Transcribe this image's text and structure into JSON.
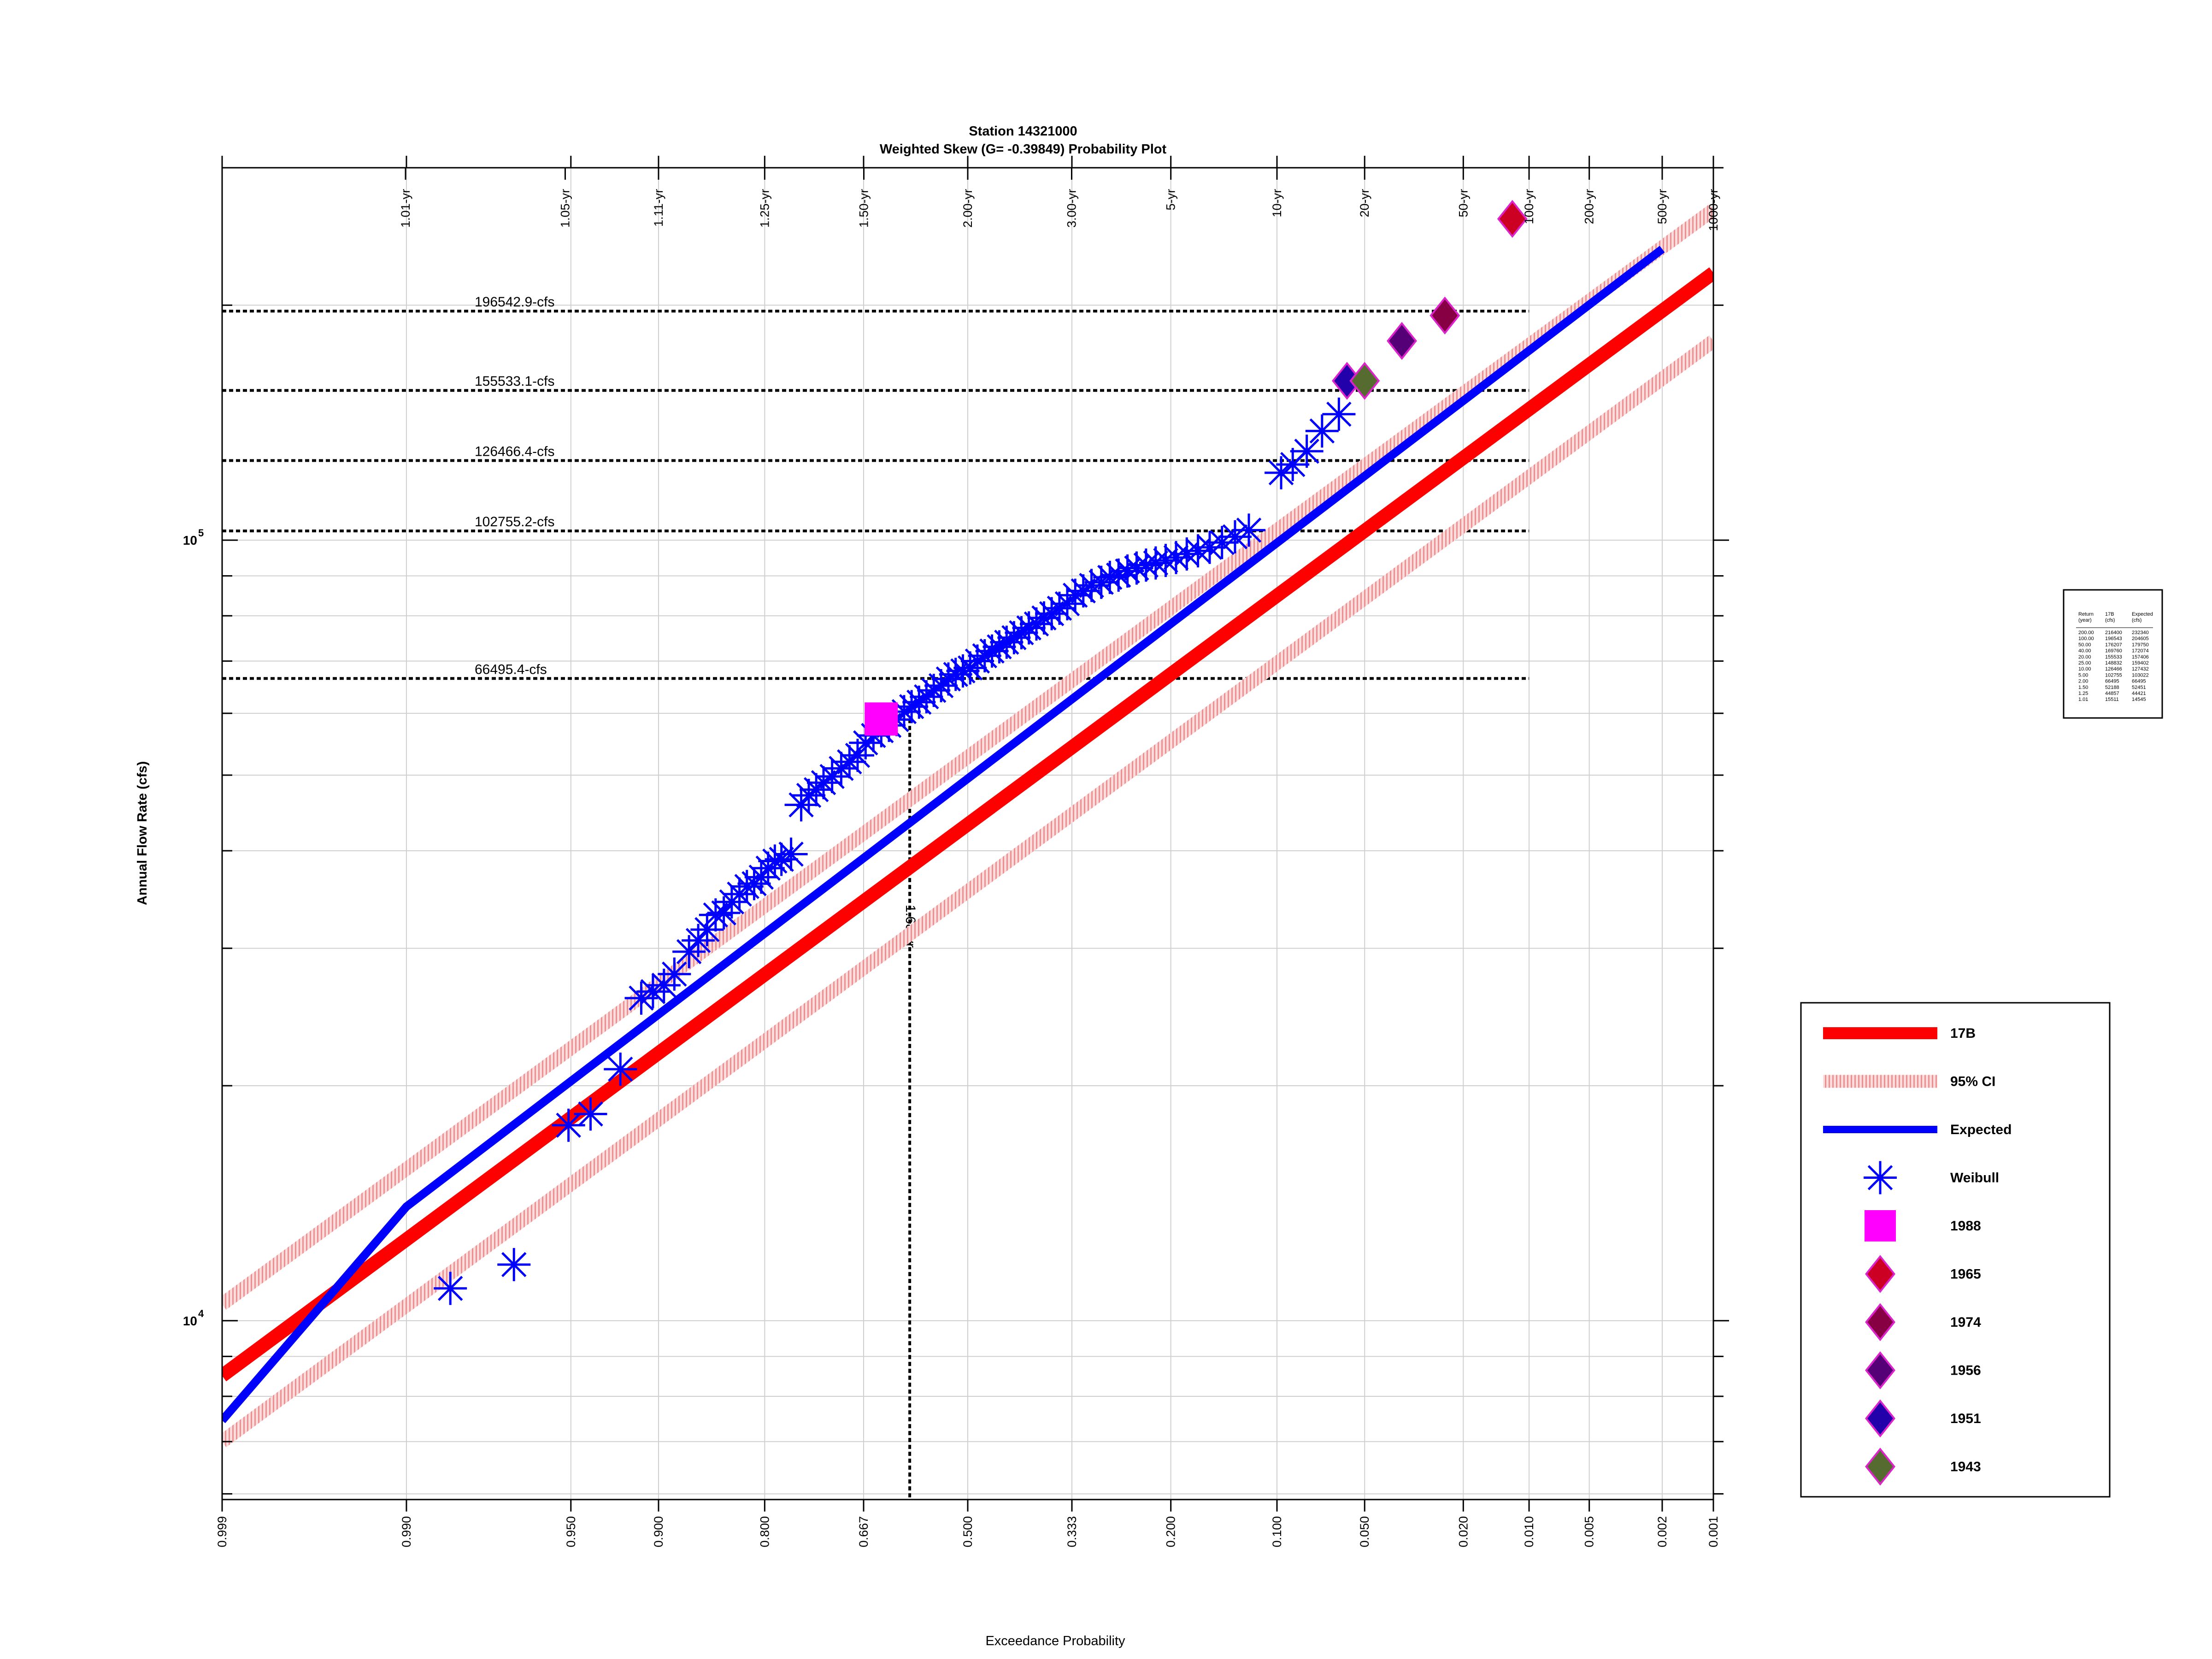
{
  "chart_data": {
    "type": "scatter",
    "title": "Station 14321000",
    "subtitle": "Weighted Skew (G= -0.39849) Probability Plot",
    "xlabel": "Exceedance Probability",
    "ylabel": "Annual Flow Rate (cfs)",
    "x_scale": "normal-probability",
    "y_scale": "log",
    "xlim": [
      0.999,
      0.001
    ],
    "ylim": [
      5900,
      300000
    ],
    "grid": true,
    "legend_position": "lower-right",
    "x_ticks": [
      {
        "p": 0.999,
        "label": "0.999"
      },
      {
        "p": 0.99,
        "label": "0.990"
      },
      {
        "p": 0.95,
        "label": "0.950"
      },
      {
        "p": 0.9,
        "label": "0.900"
      },
      {
        "p": 0.8,
        "label": "0.800"
      },
      {
        "p": 0.667,
        "label": "0.667"
      },
      {
        "p": 0.5,
        "label": "0.500"
      },
      {
        "p": 0.333,
        "label": "0.333"
      },
      {
        "p": 0.2,
        "label": "0.200"
      },
      {
        "p": 0.1,
        "label": "0.100"
      },
      {
        "p": 0.05,
        "label": "0.050"
      },
      {
        "p": 0.02,
        "label": "0.020"
      },
      {
        "p": 0.01,
        "label": "0.010"
      },
      {
        "p": 0.005,
        "label": "0.005"
      },
      {
        "p": 0.002,
        "label": "0.002"
      },
      {
        "p": 0.001,
        "label": "0.001"
      }
    ],
    "return_period_ticks": [
      {
        "p": 0.990099,
        "label": "1.01-yr"
      },
      {
        "p": 0.952381,
        "label": "1.05-yr"
      },
      {
        "p": 0.9,
        "label": "1.11-yr"
      },
      {
        "p": 0.8,
        "label": "1.25-yr"
      },
      {
        "p": 0.666667,
        "label": "1.50-yr"
      },
      {
        "p": 0.5,
        "label": "2.00-yr"
      },
      {
        "p": 0.333333,
        "label": "3.00-yr"
      },
      {
        "p": 0.2,
        "label": "5-yr"
      },
      {
        "p": 0.1,
        "label": "10-yr"
      },
      {
        "p": 0.05,
        "label": "20-yr"
      },
      {
        "p": 0.02,
        "label": "50-yr"
      },
      {
        "p": 0.01,
        "label": "100-yr"
      },
      {
        "p": 0.005,
        "label": "200-yr"
      },
      {
        "p": 0.002,
        "label": "500-yr"
      },
      {
        "p": 0.001,
        "label": "1000-yr"
      }
    ],
    "y_major_ticks": [
      {
        "v": 10000,
        "base": "10",
        "exp": "4"
      },
      {
        "v": 100000,
        "base": "10",
        "exp": "5"
      }
    ],
    "y_minor_ticks": [
      6000,
      7000,
      8000,
      9000,
      20000,
      30000,
      40000,
      50000,
      60000,
      70000,
      80000,
      90000,
      200000,
      300000
    ],
    "reference_lines": [
      {
        "value": 196542.9,
        "label": "196542.9-cfs"
      },
      {
        "value": 155533.1,
        "label": "155533.1-cfs"
      },
      {
        "value": 126466.4,
        "label": "126466.4-cfs"
      },
      {
        "value": 102755.2,
        "label": "102755.2-cfs"
      },
      {
        "value": 66495.4,
        "label": "66495.4-cfs"
      }
    ],
    "vertical_reference": {
      "p": 0.595,
      "label": "1.68-yr",
      "from_value": 59000
    },
    "series": [
      {
        "name": "17B",
        "kind": "line",
        "color": "#ff0000",
        "x": [
          0.999,
          0.001
        ],
        "y": [
          8500,
          220000
        ]
      },
      {
        "name": "95% CI",
        "kind": "band",
        "color": "#f4a0a0",
        "upper": {
          "x": [
            0.999,
            0.001
          ],
          "y": [
            10500,
            265000
          ]
        },
        "lower": {
          "x": [
            0.999,
            0.001
          ],
          "y": [
            7000,
            180000
          ]
        }
      },
      {
        "name": "Expected",
        "kind": "line",
        "color": "#0000ff",
        "x": [
          0.999,
          0.99,
          0.002
        ],
        "y": [
          7450,
          14000,
          236000
        ]
      },
      {
        "name": "Weibull",
        "kind": "marker",
        "color": "#0000ff",
        "x": [
          0.984,
          0.97,
          0.951,
          0.941,
          0.925,
          0.912,
          0.904,
          0.896,
          0.888,
          0.876,
          0.868,
          0.86,
          0.852,
          0.844,
          0.836,
          0.828,
          0.82,
          0.812,
          0.804,
          0.796,
          0.788,
          0.78,
          0.768,
          0.755,
          0.745,
          0.735,
          0.725,
          0.713,
          0.7,
          0.688,
          0.676,
          0.664,
          0.652,
          0.64,
          0.628,
          0.616,
          0.604,
          0.592,
          0.58,
          0.568,
          0.556,
          0.544,
          0.532,
          0.52,
          0.508,
          0.496,
          0.484,
          0.472,
          0.46,
          0.448,
          0.436,
          0.424,
          0.412,
          0.4,
          0.388,
          0.376,
          0.364,
          0.352,
          0.34,
          0.328,
          0.316,
          0.304,
          0.29,
          0.278,
          0.266,
          0.254,
          0.242,
          0.23,
          0.218,
          0.206,
          0.194,
          0.182,
          0.17,
          0.158,
          0.146,
          0.134,
          0.122,
          0.097,
          0.089,
          0.08,
          0.071,
          0.062
        ],
        "y": [
          11000,
          11800,
          17800,
          18400,
          21000,
          25900,
          26400,
          26900,
          27800,
          29700,
          30700,
          31700,
          33100,
          33300,
          34400,
          35200,
          36000,
          36300,
          37000,
          38000,
          38800,
          39000,
          39600,
          45800,
          47100,
          47900,
          48900,
          49800,
          51000,
          52000,
          53000,
          55000,
          56200,
          57000,
          57900,
          58900,
          60300,
          61200,
          62000,
          63000,
          64200,
          65100,
          66400,
          67300,
          68000,
          68600,
          70000,
          71100,
          72100,
          73000,
          74000,
          75000,
          76100,
          77200,
          78100,
          79500,
          80500,
          81800,
          82900,
          85000,
          86100,
          87500,
          88300,
          89600,
          90200,
          91300,
          92100,
          92900,
          93500,
          94200,
          95000,
          96000,
          96900,
          97900,
          99300,
          101000,
          103000,
          122000,
          125000,
          130000,
          138000,
          145000
        ]
      },
      {
        "name": "1988",
        "kind": "marker",
        "color": "#ff00ff",
        "x": [
          0.64
        ],
        "y": [
          59000
        ]
      },
      {
        "name": "1965",
        "kind": "marker",
        "color": "#cc0022",
        "x": [
          0.012
        ],
        "y": [
          258000
        ]
      },
      {
        "name": "1974",
        "kind": "marker",
        "color": "#880044",
        "x": [
          0.024
        ],
        "y": [
          194000
        ]
      },
      {
        "name": "1956",
        "kind": "marker",
        "color": "#550077",
        "x": [
          0.036
        ],
        "y": [
          180000
        ]
      },
      {
        "name": "1951",
        "kind": "marker",
        "color": "#2200aa",
        "x": [
          0.058
        ],
        "y": [
          160000
        ]
      },
      {
        "name": "1943",
        "kind": "marker",
        "color": "#556b2f",
        "x": [
          0.05
        ],
        "y": [
          160000
        ]
      }
    ]
  },
  "legend": {
    "items": [
      {
        "label": "17B",
        "type": "line",
        "color": "#ff0000"
      },
      {
        "label": "95% CI",
        "type": "band",
        "color": "#f4a0a0"
      },
      {
        "label": "Expected",
        "type": "line",
        "color": "#0000ff"
      },
      {
        "label": "Weibull",
        "type": "asterisk",
        "color": "#0000ff"
      },
      {
        "label": "1988",
        "type": "square",
        "color": "#ff00ff"
      },
      {
        "label": "1965",
        "type": "diamond",
        "color": "#cc0022"
      },
      {
        "label": "1974",
        "type": "diamond",
        "color": "#880044"
      },
      {
        "label": "1956",
        "type": "diamond",
        "color": "#550077"
      },
      {
        "label": "1951",
        "type": "diamond",
        "color": "#2200aa"
      },
      {
        "label": "1943",
        "type": "diamond",
        "color": "#556b2f"
      }
    ]
  },
  "frequency_table": {
    "headers": [
      "Return (year)",
      "17B (cfs)",
      "Expected (cfs)"
    ],
    "rows": [
      [
        "200.00",
        "216400",
        "232340"
      ],
      [
        "100.00",
        "196543",
        "204605"
      ],
      [
        "50.00",
        "176207",
        "179750"
      ],
      [
        "40.00",
        "169760",
        "172074"
      ],
      [
        "20.00",
        "155533",
        "157406"
      ],
      [
        "25.00",
        "148832",
        "159402"
      ],
      [
        "10.00",
        "126466",
        "127432"
      ],
      [
        "5.00",
        "102755",
        "103022"
      ],
      [
        "2.00",
        "66495",
        "66495"
      ],
      [
        "1.50",
        "52188",
        "52451"
      ],
      [
        "1.25",
        "44857",
        "44421"
      ],
      [
        "1.01",
        "15511",
        "14545"
      ]
    ]
  }
}
